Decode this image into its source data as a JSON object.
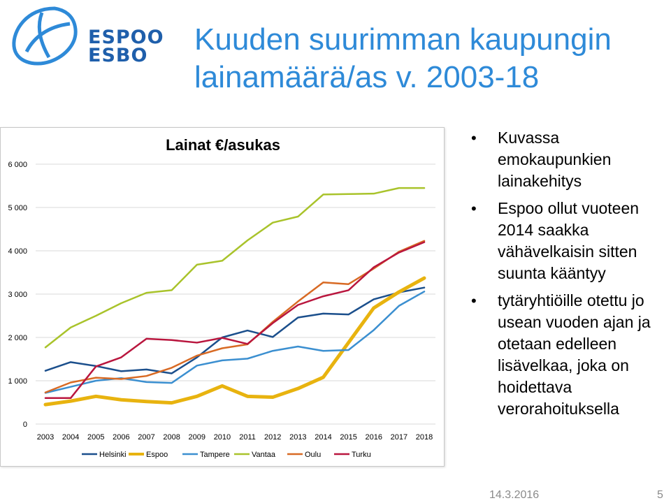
{
  "logo": {
    "line1": "ESPOO",
    "line2": "ESBO"
  },
  "slide": {
    "title_line1": "Kuuden suurimman kaupungin",
    "title_line2": "lainamäärä/as v. 2003-18",
    "bullets": [
      "Kuvassa emokaupunkien lainakehitys",
      "Espoo ollut vuoteen 2014 saakka vähävelkaisin sitten suunta kääntyy",
      "tytäryhtiöille otettu jo usean vuoden ajan ja otetaan edelleen lisävelkaa, joka on hoidettava verorahoituksella"
    ],
    "date": "14.3.2016",
    "page": "5"
  },
  "colors": {
    "title": "#2e8ad8",
    "brand": "#1f5fab"
  },
  "chart_data": {
    "type": "line",
    "title": "Lainat €/asukas",
    "xlabel": "",
    "ylabel": "",
    "ylim": [
      0,
      6000
    ],
    "yticks": [
      0,
      1000,
      2000,
      3000,
      4000,
      5000,
      6000
    ],
    "ytick_labels": [
      "0",
      "1 000",
      "2 000",
      "3 000",
      "4 000",
      "5 000",
      "6 000"
    ],
    "grid": true,
    "legend": "bottom",
    "categories": [
      "2003",
      "2004",
      "2005",
      "2006",
      "2007",
      "2008",
      "2009",
      "2010",
      "2011",
      "2012",
      "2013",
      "2014",
      "2015",
      "2016",
      "2017",
      "2018"
    ],
    "series": [
      {
        "name": "Helsinki",
        "color": "#1b4f8c",
        "values": [
          1230,
          1430,
          1340,
          1220,
          1260,
          1170,
          1540,
          2000,
          2160,
          2010,
          2460,
          2550,
          2530,
          2880,
          3040,
          3150
        ]
      },
      {
        "name": "Espoo",
        "color": "#e8b30f",
        "values": [
          450,
          530,
          640,
          560,
          520,
          490,
          640,
          880,
          640,
          620,
          820,
          1080,
          1880,
          2680,
          3050,
          3370
        ]
      },
      {
        "name": "Tampere",
        "color": "#3b8fd0",
        "values": [
          720,
          860,
          1000,
          1060,
          970,
          950,
          1350,
          1470,
          1510,
          1690,
          1790,
          1690,
          1710,
          2170,
          2730,
          3060
        ]
      },
      {
        "name": "Vantaa",
        "color": "#a9c32b",
        "values": [
          1770,
          2230,
          2500,
          2790,
          3030,
          3090,
          3680,
          3770,
          4240,
          4650,
          4790,
          5300,
          5310,
          5320,
          5450,
          5450
        ]
      },
      {
        "name": "Oulu",
        "color": "#d86a24",
        "values": [
          730,
          960,
          1070,
          1040,
          1110,
          1300,
          1580,
          1750,
          1840,
          2360,
          2830,
          3270,
          3230,
          3590,
          3980,
          4230
        ]
      },
      {
        "name": "Turku",
        "color": "#b9163e",
        "values": [
          600,
          600,
          1330,
          1540,
          1970,
          1940,
          1880,
          1990,
          1850,
          2330,
          2750,
          2950,
          3090,
          3620,
          3960,
          4200
        ]
      }
    ]
  }
}
